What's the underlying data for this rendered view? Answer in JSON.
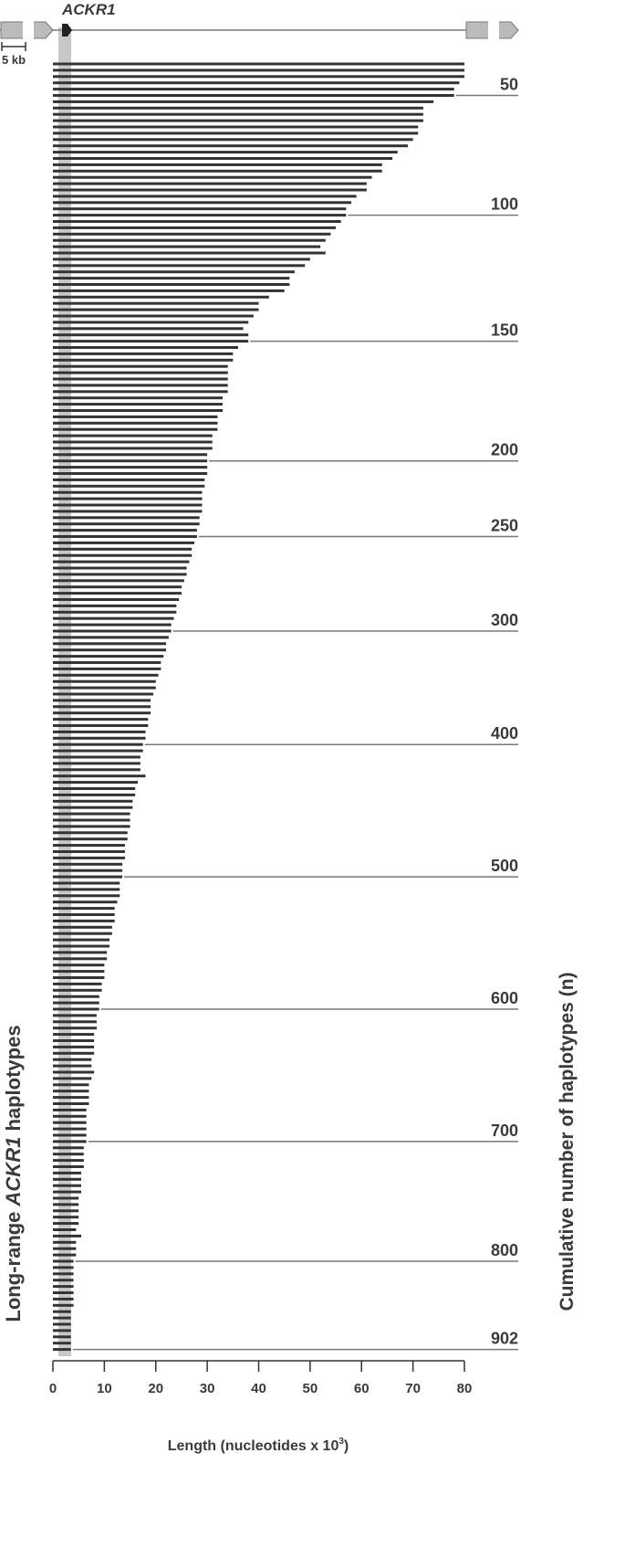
{
  "chart_data": {
    "type": "bar",
    "orientation": "horizontal",
    "color": "#333333",
    "gene_label": "ACKR1",
    "scale_label": "5 kb",
    "ylabel": [
      "Long-range ",
      "ACKR1",
      " haplotypes"
    ],
    "y2label": "Cumulative number of haplotypes (n)",
    "xlabel": [
      "Length (nucleotides x 10",
      "3",
      ")"
    ],
    "xlim": [
      0,
      80
    ],
    "xticks": [
      0,
      10,
      20,
      30,
      40,
      50,
      60,
      70,
      80
    ],
    "values": [
      80,
      80,
      80,
      79,
      78,
      78,
      74,
      72,
      72,
      72,
      71,
      71,
      70,
      69,
      67,
      66,
      64,
      64,
      62,
      61,
      61,
      59,
      58,
      57,
      57,
      56,
      55,
      54,
      53,
      52,
      53,
      50,
      49,
      47,
      46,
      46,
      45,
      42,
      40,
      40,
      39,
      38,
      37,
      38,
      38,
      36,
      35,
      35,
      34,
      34,
      34,
      34,
      34,
      33,
      33,
      33,
      32,
      32,
      32,
      31,
      31,
      31,
      30,
      30,
      30,
      30,
      29.5,
      29.5,
      29,
      29,
      29,
      29,
      28.5,
      28.5,
      28,
      28,
      27.5,
      27,
      27,
      26.5,
      26,
      26,
      25.5,
      25,
      25,
      24.5,
      24,
      24,
      23.5,
      23,
      23,
      22.5,
      22,
      22,
      21.5,
      21,
      21,
      20.5,
      20,
      20,
      19.5,
      19,
      19,
      19,
      18.5,
      18.5,
      18,
      18,
      17.5,
      17.5,
      17,
      17,
      17,
      18,
      16.5,
      16,
      16,
      15.5,
      15.5,
      15,
      15,
      15,
      14.5,
      14.5,
      14,
      14,
      14,
      13.5,
      13.5,
      13.5,
      13,
      13,
      13,
      12.5,
      12,
      12,
      12,
      11.5,
      11.5,
      11,
      11,
      10.5,
      10.5,
      10,
      10,
      10,
      9.5,
      9.5,
      9,
      9,
      9,
      8.5,
      8.5,
      8.5,
      8,
      8,
      8,
      8,
      7.5,
      7.5,
      8,
      7.5,
      7,
      7,
      7,
      7,
      6.5,
      6.5,
      6.5,
      6.5,
      6.5,
      6.5,
      6,
      6,
      6,
      6,
      5.5,
      5.5,
      5.5,
      5.5,
      5,
      5,
      5,
      5,
      5,
      4.5,
      5.5,
      4.5,
      4.5,
      4.5,
      4,
      4,
      4,
      4,
      4,
      4,
      4,
      4,
      3.5,
      3.5,
      3.5,
      3.5,
      3.5,
      3.5,
      3.5
    ],
    "markers": [
      {
        "n": 50,
        "bar": 5
      },
      {
        "n": 100,
        "bar": 24
      },
      {
        "n": 150,
        "bar": 44
      },
      {
        "n": 200,
        "bar": 63
      },
      {
        "n": 250,
        "bar": 75
      },
      {
        "n": 300,
        "bar": 90
      },
      {
        "n": 400,
        "bar": 108
      },
      {
        "n": 500,
        "bar": 129
      },
      {
        "n": 600,
        "bar": 150
      },
      {
        "n": 700,
        "bar": 171
      },
      {
        "n": 800,
        "bar": 190
      },
      {
        "n": 902,
        "bar": 204
      }
    ]
  }
}
